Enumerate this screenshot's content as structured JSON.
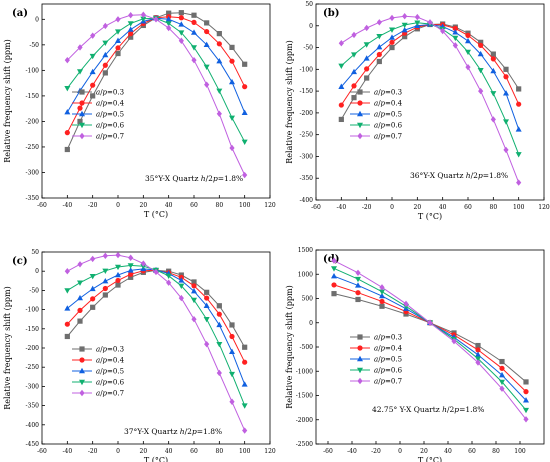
{
  "chart_data": [
    {
      "type": "line",
      "panel_label": "(a)",
      "annotation": "35°Y-X Quartz h/2p=1.8%",
      "annotation_parts": {
        "pre": "35°Y-X Quartz ",
        "h": "h",
        "mid": "/2",
        "p": "p",
        "post": "=1.8%"
      },
      "xlabel": "T (°C)",
      "ylabel": "Relative frequency shift (ppm)",
      "xlim": [
        -60,
        120
      ],
      "ylim": [
        -350,
        30
      ],
      "xticks": [
        -60,
        -40,
        -20,
        0,
        20,
        40,
        60,
        80,
        100,
        120
      ],
      "yticks": [
        -350,
        -300,
        -250,
        -200,
        -150,
        -100,
        -50,
        0
      ],
      "legend_position": "middle-left",
      "x": [
        -40,
        -30,
        -20,
        -10,
        0,
        10,
        20,
        30,
        40,
        50,
        60,
        70,
        80,
        90,
        100
      ],
      "series": [
        {
          "name": "a/p=0.3",
          "values": [
            -255,
            -200,
            -150,
            -105,
            -67,
            -35,
            -12,
            3,
            12,
            13,
            8,
            -7,
            -28,
            -55,
            -88
          ]
        },
        {
          "name": "a/p=0.4",
          "values": [
            -222,
            -174,
            -129,
            -90,
            -56,
            -28,
            -8,
            3,
            5,
            3,
            -6,
            -24,
            -48,
            -82,
            -132
          ]
        },
        {
          "name": "a/p=0.5",
          "values": [
            -182,
            -140,
            -103,
            -70,
            -42,
            -20,
            -4,
            2,
            0,
            -10,
            -26,
            -50,
            -82,
            -123,
            -183
          ]
        },
        {
          "name": "a/p=0.6",
          "values": [
            -135,
            -102,
            -72,
            -46,
            -24,
            -8,
            1,
            2,
            -8,
            -26,
            -55,
            -93,
            -140,
            -193,
            -240
          ]
        },
        {
          "name": "a/p=0.7",
          "values": [
            -80,
            -55,
            -32,
            -13,
            0,
            8,
            9,
            0,
            -17,
            -42,
            -80,
            -128,
            -185,
            -252,
            -305
          ]
        }
      ]
    },
    {
      "type": "line",
      "panel_label": "(b)",
      "annotation": "36°Y-X Quartz h/2p=1.8%",
      "annotation_parts": {
        "pre": "36°Y-X Quartz ",
        "h": "h",
        "mid": "/2",
        "p": "p",
        "post": "=1.8%"
      },
      "xlabel": "T (°C)",
      "ylabel": "Relative frequency shift (ppm)",
      "xlim": [
        -60,
        120
      ],
      "ylim": [
        -400,
        50
      ],
      "xticks": [
        -60,
        -40,
        -20,
        0,
        20,
        40,
        60,
        80,
        100,
        120
      ],
      "yticks": [
        -400,
        -350,
        -300,
        -250,
        -200,
        -150,
        -100,
        -50,
        0,
        50
      ],
      "legend_position": "middle-left",
      "x": [
        -40,
        -30,
        -20,
        -10,
        0,
        10,
        20,
        30,
        40,
        50,
        60,
        70,
        80,
        90,
        100
      ],
      "series": [
        {
          "name": "a/p=0.3",
          "values": [
            -215,
            -165,
            -120,
            -82,
            -50,
            -25,
            -7,
            3,
            4,
            -3,
            -17,
            -38,
            -65,
            -100,
            -145
          ]
        },
        {
          "name": "a/p=0.4",
          "values": [
            -182,
            -138,
            -99,
            -66,
            -38,
            -17,
            -3,
            3,
            2,
            -6,
            -22,
            -45,
            -76,
            -117,
            -180
          ]
        },
        {
          "name": "a/p=0.5",
          "values": [
            -140,
            -106,
            -75,
            -49,
            -27,
            -10,
            0,
            3,
            -2,
            -15,
            -35,
            -65,
            -104,
            -155,
            -238
          ]
        },
        {
          "name": "a/p=0.6",
          "values": [
            -92,
            -66,
            -43,
            -24,
            -9,
            2,
            7,
            4,
            -8,
            -28,
            -60,
            -102,
            -155,
            -220,
            -295
          ]
        },
        {
          "name": "a/p=0.7",
          "values": [
            -40,
            -21,
            -5,
            8,
            18,
            22,
            20,
            8,
            -12,
            -45,
            -95,
            -150,
            -215,
            -285,
            -360
          ]
        }
      ]
    },
    {
      "type": "line",
      "panel_label": "(c)",
      "annotation": "37°Y-X Quartz h/2p=1.8%",
      "annotation_parts": {
        "pre": "37°Y-X Quartz ",
        "h": "h",
        "mid": "/2",
        "p": "p",
        "post": "=1.8%"
      },
      "xlabel": "T (°C)",
      "ylabel": "Relative frequency shift (ppm)",
      "xlim": [
        -60,
        120
      ],
      "ylim": [
        -450,
        50
      ],
      "xticks": [
        -60,
        -40,
        -20,
        0,
        20,
        40,
        60,
        80,
        100,
        120
      ],
      "yticks": [
        -450,
        -400,
        -350,
        -300,
        -250,
        -200,
        -150,
        -100,
        -50,
        0,
        50
      ],
      "legend_position": "bottom-left",
      "x": [
        -40,
        -30,
        -20,
        -10,
        0,
        10,
        20,
        30,
        40,
        50,
        60,
        70,
        80,
        90,
        100
      ],
      "series": [
        {
          "name": "a/p=0.3",
          "values": [
            -170,
            -130,
            -94,
            -62,
            -36,
            -16,
            -3,
            2,
            0,
            -10,
            -28,
            -55,
            -90,
            -140,
            -198
          ]
        },
        {
          "name": "a/p=0.4",
          "values": [
            -138,
            -102,
            -72,
            -45,
            -24,
            -8,
            1,
            2,
            -4,
            -16,
            -38,
            -70,
            -112,
            -170,
            -237
          ]
        },
        {
          "name": "a/p=0.5",
          "values": [
            -97,
            -70,
            -46,
            -26,
            -10,
            2,
            6,
            3,
            -6,
            -24,
            -52,
            -90,
            -140,
            -210,
            -295
          ]
        },
        {
          "name": "a/p=0.6",
          "values": [
            -50,
            -30,
            -13,
            1,
            11,
            15,
            13,
            3,
            -12,
            -38,
            -75,
            -125,
            -190,
            -268,
            -350
          ]
        },
        {
          "name": "a/p=0.7",
          "values": [
            0,
            18,
            32,
            40,
            42,
            35,
            20,
            -2,
            -30,
            -70,
            -125,
            -190,
            -265,
            -340,
            -415
          ]
        }
      ]
    },
    {
      "type": "line",
      "panel_label": "(d)",
      "annotation": "42.75° Y-X Quartz h/2p=1.8%",
      "annotation_parts": {
        "pre": "42.75° Y-X Quartz ",
        "h": "h",
        "mid": "/2",
        "p": "p",
        "post": "=1.8%"
      },
      "xlabel": "T (°C)",
      "ylabel": "Relative frequency shift (ppm)",
      "xlim": [
        -70,
        120
      ],
      "ylim": [
        -2500,
        1500
      ],
      "xticks": [
        -60,
        -40,
        -20,
        0,
        20,
        40,
        60,
        80,
        100
      ],
      "yticks": [
        -2500,
        -2000,
        -1500,
        -1000,
        -500,
        0,
        500,
        1000,
        1500
      ],
      "legend_position": "bottom-left",
      "x": [
        -55,
        -35,
        -15,
        5,
        25,
        45,
        65,
        85,
        105
      ],
      "series": [
        {
          "name": "a/p=0.3",
          "values": [
            600,
            480,
            340,
            180,
            0,
            -210,
            -470,
            -800,
            -1220
          ]
        },
        {
          "name": "a/p=0.4",
          "values": [
            780,
            620,
            440,
            230,
            0,
            -250,
            -560,
            -940,
            -1420
          ]
        },
        {
          "name": "a/p=0.5",
          "values": [
            960,
            770,
            550,
            290,
            0,
            -300,
            -660,
            -1080,
            -1600
          ]
        },
        {
          "name": "a/p=0.6",
          "values": [
            1120,
            900,
            640,
            340,
            0,
            -340,
            -740,
            -1220,
            -1800
          ]
        },
        {
          "name": "a/p=0.7",
          "values": [
            1280,
            1030,
            730,
            390,
            0,
            -380,
            -820,
            -1360,
            -1990
          ]
        }
      ]
    }
  ],
  "series_styles": [
    {
      "color": "#6e6e6e",
      "marker": "square"
    },
    {
      "color": "#ff2020",
      "marker": "circle"
    },
    {
      "color": "#1060e0",
      "marker": "triangle-up"
    },
    {
      "color": "#10b070",
      "marker": "triangle-down"
    },
    {
      "color": "#c060e0",
      "marker": "diamond"
    }
  ]
}
